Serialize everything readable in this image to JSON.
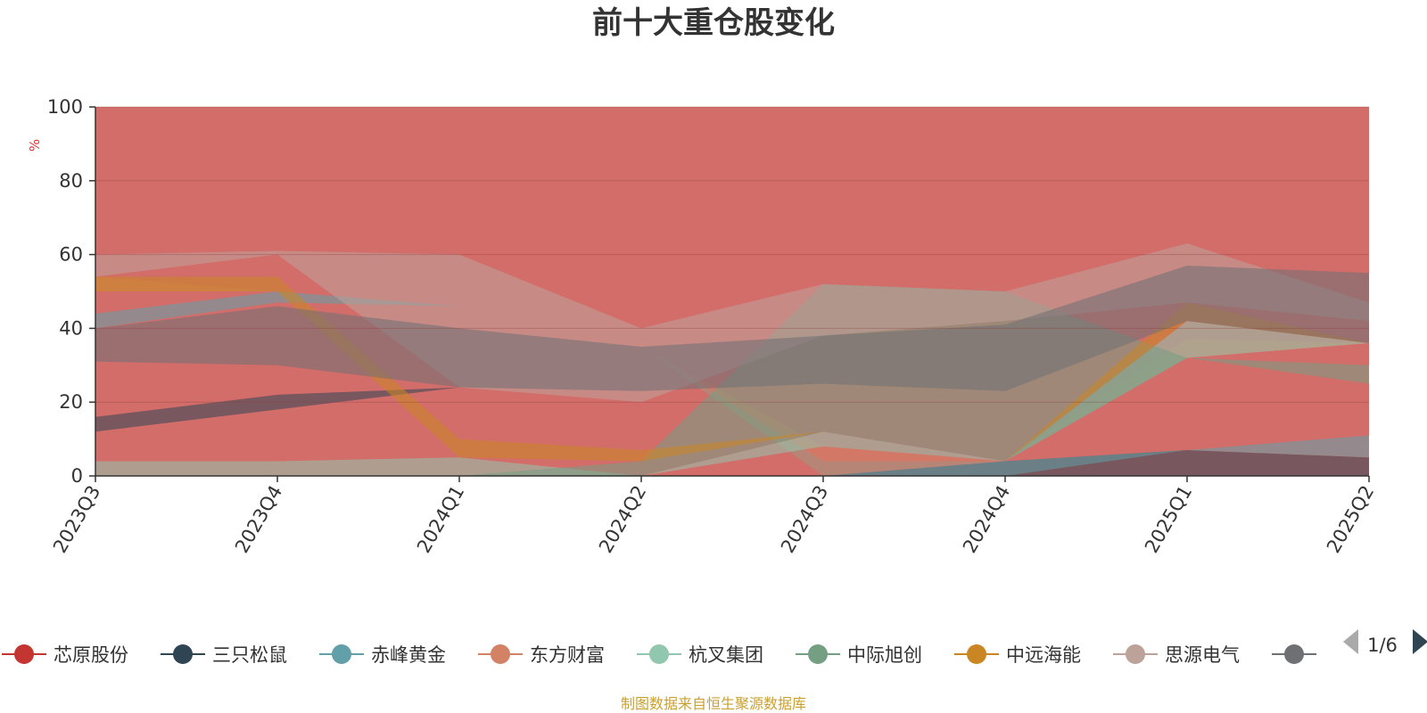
{
  "chart_data": {
    "type": "area",
    "stacked": false,
    "title": "前十大重仓股变化",
    "unit_label": "%",
    "categories": [
      "2023Q3",
      "2023Q4",
      "2024Q1",
      "2024Q2",
      "2024Q3",
      "2024Q4",
      "2025Q1",
      "2025Q2"
    ],
    "ylim": [
      0,
      100
    ],
    "yticks": [
      0,
      20,
      40,
      60,
      80,
      100
    ],
    "grid": true,
    "legend_position": "bottom",
    "series": [
      {
        "name": "芯原股份",
        "color": "#c23531",
        "lower": [
          0,
          0,
          0,
          0,
          0,
          0,
          0,
          0
        ],
        "upper": [
          100,
          100,
          100,
          100,
          100,
          100,
          100,
          100
        ]
      },
      {
        "name": "三只松鼠",
        "color": "#2f4554",
        "lower": [
          12,
          18,
          24,
          16,
          0,
          0,
          0,
          0
        ],
        "upper": [
          16,
          22,
          24,
          16,
          0,
          4,
          7,
          5
        ]
      },
      {
        "name": "赤峰黄金",
        "color": "#61a0a8",
        "lower": [
          40,
          47,
          46,
          35,
          0,
          0,
          7,
          5
        ],
        "upper": [
          44,
          50,
          46,
          35,
          4,
          4,
          7,
          11
        ]
      },
      {
        "name": "东方财富",
        "color": "#d48265",
        "lower": [
          50,
          50,
          50,
          35,
          0,
          4,
          32,
          36
        ],
        "upper": [
          54,
          50,
          50,
          35,
          8,
          4,
          37,
          36
        ]
      },
      {
        "name": "杭叉集团",
        "color": "#91c7ae",
        "lower": [
          0,
          0,
          0,
          0,
          8,
          4,
          32,
          36
        ],
        "upper": [
          4,
          4,
          5,
          0,
          12,
          4,
          42,
          36
        ]
      },
      {
        "name": "中际旭创",
        "color": "#749f83",
        "lower": [
          0,
          0,
          0,
          0,
          12,
          4,
          32,
          25
        ],
        "upper": [
          0,
          0,
          0,
          4,
          52,
          50,
          32,
          30
        ]
      },
      {
        "name": "中远海能",
        "color": "#ca8622",
        "lower": [
          50,
          50,
          5,
          4,
          12,
          4,
          42,
          36
        ],
        "upper": [
          54,
          54,
          10,
          7,
          12,
          4,
          47,
          36
        ]
      },
      {
        "name": "思源电气",
        "color": "#bda29a",
        "lower": [
          54,
          60,
          24,
          20,
          38,
          42,
          47,
          42
        ],
        "upper": [
          60,
          61,
          60,
          40,
          52,
          50,
          63,
          47
        ]
      },
      {
        "name": "",
        "color": "#6e7074",
        "lower": [
          31,
          30,
          24,
          23,
          25,
          23,
          42,
          36
        ],
        "upper": [
          40,
          46,
          40,
          35,
          38,
          41,
          57,
          55
        ]
      }
    ],
    "source_note": "制图数据来自恒生聚源数据库"
  },
  "legend": {
    "page_indicator": "1/6"
  }
}
